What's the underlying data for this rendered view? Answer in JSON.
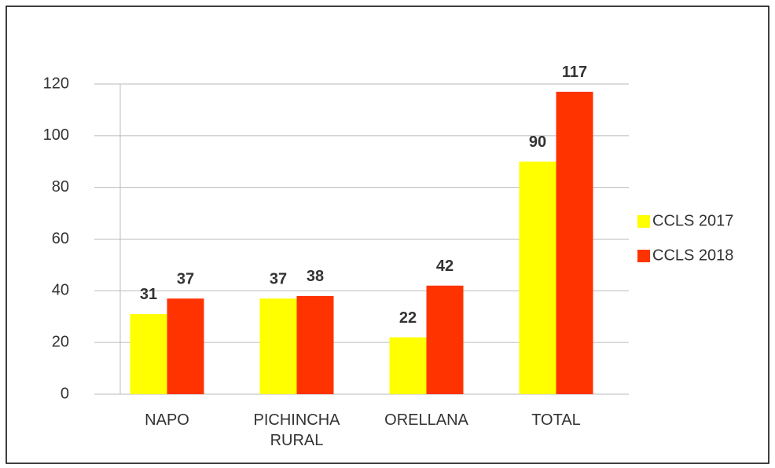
{
  "chart_data": {
    "type": "bar",
    "categories": [
      "NAPO",
      "PICHINCHA RURAL",
      "ORELLANA",
      "TOTAL"
    ],
    "series": [
      {
        "name": "CCLS 2017",
        "color": "#ffff00",
        "values": [
          31,
          37,
          22,
          90
        ]
      },
      {
        "name": "CCLS 2018",
        "color": "#ff3300",
        "values": [
          37,
          38,
          42,
          117
        ]
      }
    ],
    "ylim": [
      0,
      120
    ],
    "yticks": [
      0,
      20,
      40,
      60,
      80,
      100,
      120
    ],
    "grid": true,
    "legend": "right"
  }
}
